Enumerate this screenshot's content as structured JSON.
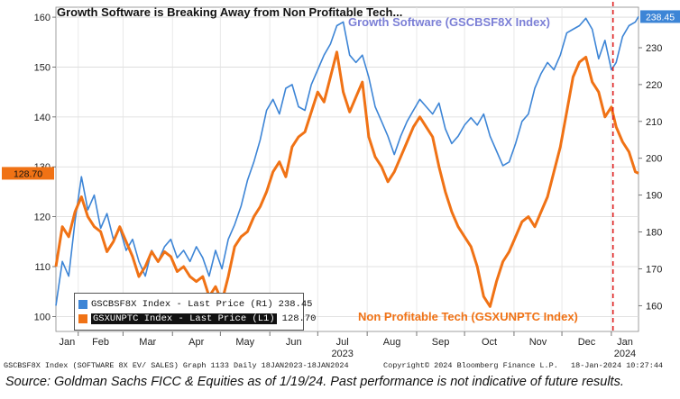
{
  "chart_data": {
    "type": "line",
    "title": "Growth Software is Breaking Away from Non Profitable Tech...",
    "x_range": [
      "2023-01-18",
      "2024-01-18"
    ],
    "x_ticks": [
      {
        "label": "Jan",
        "date": "2023-01-01"
      },
      {
        "label": "Feb",
        "date": "2023-02-01"
      },
      {
        "label": "Mar",
        "date": "2023-03-01"
      },
      {
        "label": "Apr",
        "date": "2023-04-01"
      },
      {
        "label": "May",
        "date": "2023-05-01"
      },
      {
        "label": "Jun",
        "date": "2023-06-01"
      },
      {
        "label": "Jul",
        "date": "2023-07-01"
      },
      {
        "label": "Aug",
        "date": "2023-08-01"
      },
      {
        "label": "Sep",
        "date": "2023-09-01"
      },
      {
        "label": "Oct",
        "date": "2023-10-01"
      },
      {
        "label": "Nov",
        "date": "2023-11-01"
      },
      {
        "label": "Dec",
        "date": "2023-12-01"
      },
      {
        "label": "Jan",
        "date": "2024-01-01"
      }
    ],
    "year_labels": [
      {
        "label": "2023",
        "date": "2023-07-01"
      },
      {
        "label": "2024",
        "date": "2024-01-01"
      }
    ],
    "left_axis": {
      "ticks": [
        100,
        110,
        120,
        130,
        140,
        150,
        160
      ],
      "range": [
        97,
        162
      ]
    },
    "right_axis": {
      "ticks": [
        160,
        170,
        180,
        190,
        200,
        210,
        220,
        230
      ],
      "range": [
        153,
        241
      ]
    },
    "vline_date": "2024-01-02",
    "grid": true,
    "series": [
      {
        "name": "GSCBSF8X Index - Last Price (R1)",
        "axis": "right",
        "color": "#3d85d6",
        "last_value": "238.45",
        "points": [
          [
            "2023-01-18",
            160
          ],
          [
            "2023-01-22",
            172
          ],
          [
            "2023-01-26",
            168
          ],
          [
            "2023-01-30",
            183
          ],
          [
            "2023-02-03",
            195
          ],
          [
            "2023-02-07",
            186
          ],
          [
            "2023-02-11",
            190
          ],
          [
            "2023-02-15",
            181
          ],
          [
            "2023-02-19",
            185
          ],
          [
            "2023-02-23",
            178
          ],
          [
            "2023-02-27",
            181
          ],
          [
            "2023-03-03",
            175
          ],
          [
            "2023-03-07",
            178
          ],
          [
            "2023-03-11",
            172
          ],
          [
            "2023-03-15",
            168
          ],
          [
            "2023-03-19",
            175
          ],
          [
            "2023-03-23",
            172
          ],
          [
            "2023-03-27",
            176
          ],
          [
            "2023-03-31",
            178
          ],
          [
            "2023-04-04",
            173
          ],
          [
            "2023-04-08",
            175
          ],
          [
            "2023-04-12",
            172
          ],
          [
            "2023-04-16",
            176
          ],
          [
            "2023-04-20",
            173
          ],
          [
            "2023-04-24",
            168
          ],
          [
            "2023-04-28",
            175
          ],
          [
            "2023-05-02",
            170
          ],
          [
            "2023-05-06",
            178
          ],
          [
            "2023-05-10",
            182
          ],
          [
            "2023-05-14",
            187
          ],
          [
            "2023-05-18",
            194
          ],
          [
            "2023-05-22",
            199
          ],
          [
            "2023-05-26",
            205
          ],
          [
            "2023-05-30",
            213
          ],
          [
            "2023-06-03",
            216
          ],
          [
            "2023-06-07",
            212
          ],
          [
            "2023-06-11",
            219
          ],
          [
            "2023-06-15",
            220
          ],
          [
            "2023-06-19",
            214
          ],
          [
            "2023-06-23",
            213
          ],
          [
            "2023-06-27",
            220
          ],
          [
            "2023-07-01",
            224
          ],
          [
            "2023-07-05",
            228
          ],
          [
            "2023-07-09",
            231
          ],
          [
            "2023-07-13",
            236
          ],
          [
            "2023-07-17",
            237
          ],
          [
            "2023-07-21",
            228
          ],
          [
            "2023-07-25",
            226
          ],
          [
            "2023-07-29",
            228
          ],
          [
            "2023-08-02",
            222
          ],
          [
            "2023-08-06",
            214
          ],
          [
            "2023-08-10",
            210
          ],
          [
            "2023-08-14",
            206
          ],
          [
            "2023-08-18",
            201
          ],
          [
            "2023-08-22",
            206
          ],
          [
            "2023-08-26",
            210
          ],
          [
            "2023-08-30",
            213
          ],
          [
            "2023-09-03",
            216
          ],
          [
            "2023-09-07",
            214
          ],
          [
            "2023-09-11",
            212
          ],
          [
            "2023-09-15",
            215
          ],
          [
            "2023-09-19",
            208
          ],
          [
            "2023-09-23",
            204
          ],
          [
            "2023-09-27",
            206
          ],
          [
            "2023-10-01",
            209
          ],
          [
            "2023-10-05",
            211
          ],
          [
            "2023-10-09",
            209
          ],
          [
            "2023-10-13",
            212
          ],
          [
            "2023-10-17",
            206
          ],
          [
            "2023-10-21",
            202
          ],
          [
            "2023-10-25",
            198
          ],
          [
            "2023-10-29",
            199
          ],
          [
            "2023-11-02",
            204
          ],
          [
            "2023-11-06",
            210
          ],
          [
            "2023-11-10",
            212
          ],
          [
            "2023-11-14",
            219
          ],
          [
            "2023-11-18",
            223
          ],
          [
            "2023-11-22",
            226
          ],
          [
            "2023-11-26",
            224
          ],
          [
            "2023-11-30",
            228
          ],
          [
            "2023-12-04",
            234
          ],
          [
            "2023-12-08",
            235
          ],
          [
            "2023-12-12",
            236
          ],
          [
            "2023-12-16",
            238
          ],
          [
            "2023-12-20",
            235
          ],
          [
            "2023-12-24",
            227
          ],
          [
            "2023-12-28",
            232
          ],
          [
            "2024-01-01",
            224
          ],
          [
            "2024-01-04",
            226
          ],
          [
            "2024-01-08",
            233
          ],
          [
            "2024-01-12",
            236
          ],
          [
            "2024-01-16",
            237
          ],
          [
            "2024-01-18",
            238.45
          ]
        ]
      },
      {
        "name": "GSXUNPTC Index - Last Price (L1)",
        "axis": "left",
        "color": "#f07215",
        "last_value": "128.70",
        "points": [
          [
            "2023-01-18",
            110
          ],
          [
            "2023-01-22",
            118
          ],
          [
            "2023-01-26",
            116
          ],
          [
            "2023-01-30",
            121
          ],
          [
            "2023-02-03",
            124
          ],
          [
            "2023-02-07",
            120
          ],
          [
            "2023-02-11",
            118
          ],
          [
            "2023-02-15",
            117
          ],
          [
            "2023-02-19",
            113
          ],
          [
            "2023-02-23",
            115
          ],
          [
            "2023-02-27",
            118
          ],
          [
            "2023-03-03",
            115
          ],
          [
            "2023-03-07",
            112
          ],
          [
            "2023-03-11",
            108
          ],
          [
            "2023-03-15",
            110
          ],
          [
            "2023-03-19",
            113
          ],
          [
            "2023-03-23",
            111
          ],
          [
            "2023-03-27",
            113
          ],
          [
            "2023-03-31",
            112
          ],
          [
            "2023-04-04",
            109
          ],
          [
            "2023-04-08",
            110
          ],
          [
            "2023-04-12",
            108
          ],
          [
            "2023-04-16",
            107
          ],
          [
            "2023-04-20",
            108
          ],
          [
            "2023-04-24",
            104
          ],
          [
            "2023-04-28",
            106
          ],
          [
            "2023-05-02",
            103
          ],
          [
            "2023-05-06",
            108
          ],
          [
            "2023-05-10",
            114
          ],
          [
            "2023-05-14",
            116
          ],
          [
            "2023-05-18",
            117
          ],
          [
            "2023-05-22",
            120
          ],
          [
            "2023-05-26",
            122
          ],
          [
            "2023-05-30",
            125
          ],
          [
            "2023-06-03",
            129
          ],
          [
            "2023-06-07",
            131
          ],
          [
            "2023-06-11",
            128
          ],
          [
            "2023-06-15",
            134
          ],
          [
            "2023-06-19",
            136
          ],
          [
            "2023-06-23",
            137
          ],
          [
            "2023-06-27",
            141
          ],
          [
            "2023-07-01",
            145
          ],
          [
            "2023-07-05",
            143
          ],
          [
            "2023-07-09",
            148
          ],
          [
            "2023-07-13",
            153
          ],
          [
            "2023-07-17",
            145
          ],
          [
            "2023-07-21",
            141
          ],
          [
            "2023-07-25",
            144
          ],
          [
            "2023-07-29",
            147
          ],
          [
            "2023-08-02",
            136
          ],
          [
            "2023-08-06",
            132
          ],
          [
            "2023-08-10",
            130
          ],
          [
            "2023-08-14",
            127
          ],
          [
            "2023-08-18",
            129
          ],
          [
            "2023-08-22",
            132
          ],
          [
            "2023-08-26",
            135
          ],
          [
            "2023-08-30",
            138
          ],
          [
            "2023-09-03",
            140
          ],
          [
            "2023-09-07",
            138
          ],
          [
            "2023-09-11",
            136
          ],
          [
            "2023-09-15",
            130
          ],
          [
            "2023-09-19",
            125
          ],
          [
            "2023-09-23",
            121
          ],
          [
            "2023-09-27",
            118
          ],
          [
            "2023-10-01",
            116
          ],
          [
            "2023-10-05",
            114
          ],
          [
            "2023-10-09",
            110
          ],
          [
            "2023-10-13",
            104
          ],
          [
            "2023-10-17",
            102
          ],
          [
            "2023-10-21",
            107
          ],
          [
            "2023-10-25",
            111
          ],
          [
            "2023-10-29",
            113
          ],
          [
            "2023-11-02",
            116
          ],
          [
            "2023-11-06",
            119
          ],
          [
            "2023-11-10",
            120
          ],
          [
            "2023-11-14",
            118
          ],
          [
            "2023-11-18",
            121
          ],
          [
            "2023-11-22",
            124
          ],
          [
            "2023-11-26",
            129
          ],
          [
            "2023-11-30",
            134
          ],
          [
            "2023-12-04",
            141
          ],
          [
            "2023-12-08",
            148
          ],
          [
            "2023-12-12",
            151
          ],
          [
            "2023-12-16",
            152
          ],
          [
            "2023-12-20",
            147
          ],
          [
            "2023-12-24",
            145
          ],
          [
            "2023-12-28",
            140
          ],
          [
            "2024-01-01",
            142
          ],
          [
            "2024-01-04",
            138
          ],
          [
            "2024-01-08",
            135
          ],
          [
            "2024-01-12",
            133
          ],
          [
            "2024-01-16",
            129
          ],
          [
            "2024-01-18",
            128.7
          ]
        ]
      }
    ],
    "annotations": {
      "top_series_label": "Growth Software (GSCBSF8X Index)",
      "bottom_series_label": "Non Profitable Tech (GSXUNPTC Index)"
    },
    "legend_position": "bottom-left"
  },
  "footer": {
    "left": "GSCBSF8X Index (SOFTWARE 8X EV/ SALES) Graph 1133  Daily 18JAN2023-18JAN2024",
    "middle": "Copyright© 2024 Bloomberg Finance L.P.",
    "right": "18-Jan-2024 10:27:44"
  },
  "source": "Source: Goldman Sachs FICC & Equities as of 1/19/24. Past performance is not indicative of future results."
}
